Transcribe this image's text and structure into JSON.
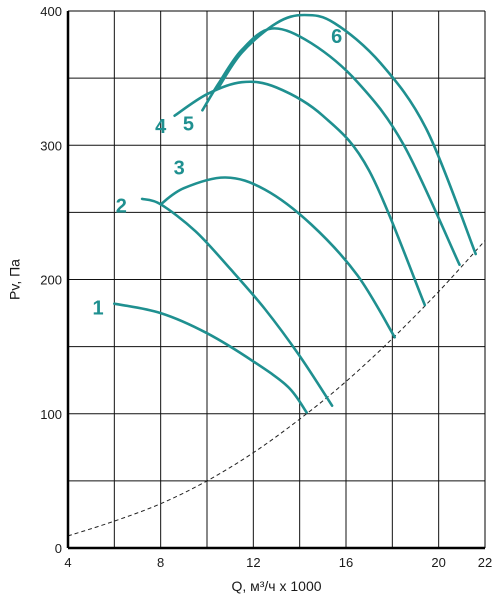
{
  "chart_data": {
    "type": "line",
    "xlabel": "Q, м³/ч x 1000",
    "ylabel": "Pv, Па",
    "xlim": [
      4,
      22
    ],
    "ylim": [
      0,
      400
    ],
    "x_ticks": [
      4,
      8,
      12,
      16,
      20,
      22
    ],
    "x_tick_labels": [
      "4",
      "8",
      "12",
      "16",
      "20",
      "22"
    ],
    "y_ticks": [
      0,
      100,
      200,
      300,
      400
    ],
    "y_tick_labels": [
      "0",
      "100",
      "200",
      "300",
      "400"
    ],
    "x_grid": [
      4,
      6,
      8,
      10,
      12,
      14,
      16,
      18,
      20,
      22
    ],
    "y_grid": [
      0,
      50,
      100,
      150,
      200,
      250,
      300,
      350,
      400
    ],
    "grid": true,
    "curve_color": "#1f9090",
    "system_curve_color": "#222222",
    "series": [
      {
        "name": "1",
        "x": [
          6.0,
          8.0,
          10.0,
          12.0,
          13.5,
          14.3
        ],
        "y": [
          182,
          175,
          160,
          139,
          120,
          101
        ]
      },
      {
        "name": "2",
        "x": [
          7.2,
          8.0,
          9.5,
          11.0,
          12.5,
          14.0,
          15.4
        ],
        "y": [
          260,
          256,
          236,
          208,
          178,
          143,
          106
        ]
      },
      {
        "name": "3",
        "x": [
          8.0,
          9.0,
          10.8,
          12.5,
          14.5,
          16.5,
          18.1
        ],
        "y": [
          256,
          268,
          276,
          267,
          241,
          203,
          157
        ]
      },
      {
        "name": "4",
        "x": [
          8.6,
          10.0,
          11.5,
          13.0,
          15.0,
          17.0,
          19.4
        ],
        "y": [
          322,
          338,
          347,
          343,
          322,
          281,
          181
        ]
      },
      {
        "name": "5",
        "x": [
          9.8,
          10.5,
          11.5,
          12.8,
          14.5,
          16.5,
          18.5,
          20.9
        ],
        "y": [
          326,
          346,
          371,
          387,
          376,
          347,
          300,
          211
        ]
      },
      {
        "name": "6",
        "x": [
          10.5,
          11.5,
          13.0,
          14.2,
          15.5,
          17.5,
          19.5,
          21.6
        ],
        "y": [
          343,
          369,
          391,
          397,
          391,
          361,
          311,
          219
        ]
      }
    ],
    "system_curve": {
      "style": "dashed",
      "x": [
        4.0,
        6.0,
        8.0,
        10.0,
        12.0,
        14.0,
        16.0,
        18.0,
        20.0,
        22.0
      ],
      "y": [
        9,
        20,
        33,
        50,
        71,
        96,
        124,
        156,
        191,
        229
      ]
    },
    "curve_labels": [
      {
        "text": "1",
        "x": 5.3,
        "y": 178
      },
      {
        "text": "2",
        "x": 6.3,
        "y": 254
      },
      {
        "text": "3",
        "x": 8.8,
        "y": 282
      },
      {
        "text": "4",
        "x": 8.0,
        "y": 313
      },
      {
        "text": "5",
        "x": 9.2,
        "y": 315
      },
      {
        "text": "6",
        "x": 15.6,
        "y": 380
      }
    ]
  }
}
